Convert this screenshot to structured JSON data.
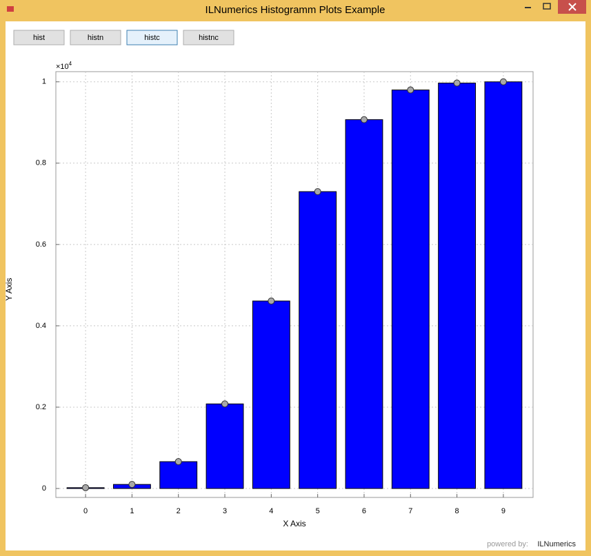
{
  "window": {
    "title": "ILNumerics Histogramm Plots Example"
  },
  "buttons": [
    "hist",
    "histn",
    "histc",
    "histnc"
  ],
  "footer": {
    "prefix": "powered by:",
    "brand": "ILNumerics"
  },
  "chart_data": {
    "type": "bar",
    "xlabel": "X Axis",
    "ylabel": "Y Axis",
    "y_multiplier": {
      "base": "×10",
      "exponent": "4"
    },
    "x": [
      0,
      1,
      2,
      3,
      4,
      5,
      6,
      7,
      8,
      9
    ],
    "values": [
      0.002,
      0.01,
      0.066,
      0.208,
      0.461,
      0.73,
      0.907,
      0.98,
      0.997,
      1.0
    ],
    "color": "#0000ff",
    "marker_color": "#a8a8a8",
    "xlim": [
      -0.64,
      9.64
    ],
    "xticks": [
      0,
      1,
      2,
      3,
      4,
      5,
      6,
      7,
      8,
      9
    ],
    "ylim": [
      -0.022,
      1.025
    ],
    "yticks": [
      0,
      0.2,
      0.4,
      0.6,
      0.8,
      1
    ],
    "grid": true
  }
}
